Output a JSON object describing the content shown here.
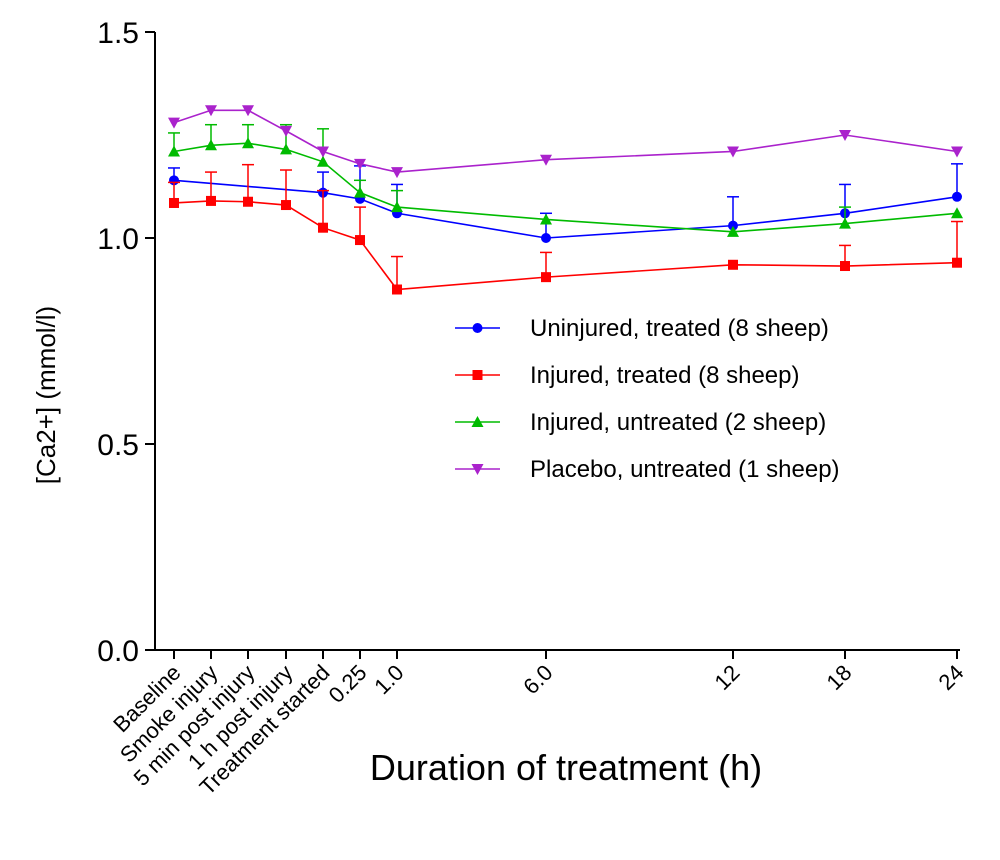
{
  "chart_data": {
    "type": "line",
    "title": "",
    "xlabel": "Duration of treatment (h)",
    "ylabel": "[Ca2+] (mmol/l)",
    "ylim": [
      0,
      1.5
    ],
    "yticks": [
      "0.0",
      "0.5",
      "1.0",
      "1.5"
    ],
    "categories": [
      "Baseline",
      "Smoke injury",
      "5 min post injury",
      "1 h post injury",
      "Treatment started",
      "0.25",
      "1.0",
      "6.0",
      "12",
      "18",
      "24"
    ],
    "legend_position": "right-middle",
    "grid": false,
    "series": [
      {
        "name": "Uninjured, treated (8 sheep)",
        "color": "#0000ff",
        "marker": "circle",
        "values": [
          1.14,
          null,
          null,
          null,
          1.11,
          1.095,
          1.06,
          1.0,
          1.03,
          1.06,
          1.1
        ],
        "error": [
          0.03,
          null,
          null,
          null,
          0.05,
          0.08,
          0.07,
          0.06,
          0.07,
          0.07,
          0.08
        ]
      },
      {
        "name": "Injured, treated (8 sheep)",
        "color": "#ff0000",
        "marker": "square",
        "values": [
          1.085,
          1.09,
          1.088,
          1.08,
          1.025,
          0.995,
          0.875,
          0.905,
          0.935,
          0.932,
          0.94
        ],
        "error": [
          0.05,
          0.07,
          0.09,
          0.085,
          0.09,
          0.08,
          0.08,
          0.06,
          0.0,
          0.05,
          0.1
        ]
      },
      {
        "name": "Injured, untreated (2 sheep)",
        "color": "#00bb00",
        "marker": "triangle-up",
        "values": [
          1.21,
          1.225,
          1.23,
          1.215,
          1.185,
          1.11,
          1.075,
          1.045,
          1.015,
          1.035,
          1.06
        ],
        "error": [
          0.045,
          0.05,
          0.045,
          0.06,
          0.08,
          0.03,
          0.04,
          0.0,
          0.0,
          0.04,
          0.0
        ]
      },
      {
        "name": "Placebo, untreated (1 sheep)",
        "color": "#aa22cc",
        "marker": "triangle-down",
        "values": [
          1.28,
          1.31,
          1.31,
          1.26,
          1.21,
          1.18,
          1.16,
          1.19,
          1.21,
          1.25,
          1.21
        ],
        "error": [
          0.0,
          0.0,
          0.0,
          0.0,
          0.0,
          0.0,
          0.0,
          0.0,
          0.0,
          0.0,
          0.0
        ]
      }
    ]
  }
}
